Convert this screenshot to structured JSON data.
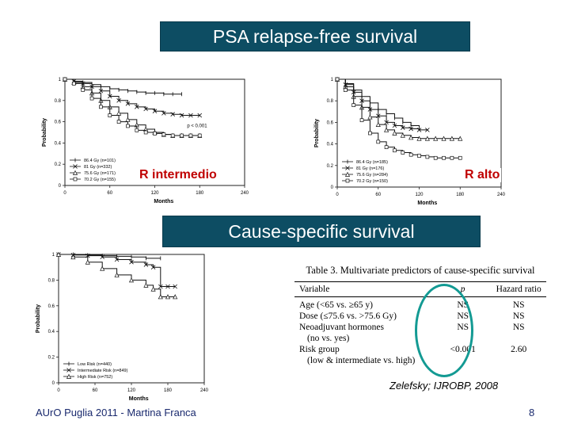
{
  "slide": {
    "title_top": "PSA relapse-free survival",
    "title_mid": "Cause-specific survival",
    "label_intermediate": "R  intermedio",
    "label_high": "R  alto",
    "citation": "Zelefsky; IJROBP, 2008",
    "footer": "AUrO Puglia 2011 - Martina Franca",
    "page_number": "8",
    "colors": {
      "banner": "#0d4d63",
      "label_red": "#c00000",
      "ellipse": "#139a93"
    }
  },
  "chart_data": [
    {
      "type": "line",
      "panel": "PSA relapse-free survival — intermediate risk",
      "xlabel": "Months",
      "ylabel": "Probability",
      "xticks": [
        "0",
        "60",
        "120",
        "180",
        "240"
      ],
      "yticks": [
        "0",
        "0.2",
        "0.4",
        "0.6",
        "0.8",
        "1"
      ],
      "xlim": [
        0,
        240
      ],
      "ylim": [
        0,
        1
      ],
      "annotation": "p < 0.001",
      "series": [
        {
          "name": "86.4 Gy (n=101)",
          "x": [
            0,
            12,
            24,
            36,
            48,
            60,
            72,
            84,
            96,
            108,
            120,
            132,
            144,
            156
          ],
          "y": [
            1,
            0.98,
            0.97,
            0.95,
            0.93,
            0.91,
            0.9,
            0.89,
            0.88,
            0.87,
            0.87,
            0.86,
            0.86,
            0.86
          ]
        },
        {
          "name": "81 Gy (n=332)",
          "x": [
            0,
            12,
            24,
            36,
            48,
            60,
            72,
            84,
            96,
            108,
            120,
            132,
            144,
            156,
            168,
            180
          ],
          "y": [
            1,
            0.98,
            0.96,
            0.93,
            0.89,
            0.84,
            0.8,
            0.77,
            0.74,
            0.72,
            0.7,
            0.68,
            0.67,
            0.66,
            0.66,
            0.66
          ]
        },
        {
          "name": "75.6 Gy (n=171)",
          "x": [
            0,
            12,
            24,
            36,
            48,
            60,
            72,
            84,
            96,
            108,
            120,
            132,
            144,
            156,
            168,
            180
          ],
          "y": [
            1,
            0.97,
            0.93,
            0.87,
            0.8,
            0.74,
            0.68,
            0.62,
            0.57,
            0.53,
            0.5,
            0.48,
            0.47,
            0.47,
            0.47,
            0.47
          ]
        },
        {
          "name": "70.2 Gy (n=155)",
          "x": [
            0,
            12,
            24,
            36,
            48,
            60,
            72,
            84,
            96,
            108,
            120,
            132,
            144,
            156,
            168,
            180
          ],
          "y": [
            1,
            0.96,
            0.9,
            0.82,
            0.74,
            0.66,
            0.6,
            0.56,
            0.52,
            0.5,
            0.49,
            0.48,
            0.47,
            0.47,
            0.47,
            0.47
          ]
        }
      ]
    },
    {
      "type": "line",
      "panel": "PSA relapse-free survival — high risk",
      "xlabel": "Months",
      "ylabel": "Probability",
      "xticks": [
        "0",
        "60",
        "120",
        "180",
        "240"
      ],
      "yticks": [
        "0",
        "0.2",
        "0.4",
        "0.6",
        "0.8",
        "1"
      ],
      "xlim": [
        0,
        240
      ],
      "ylim": [
        0,
        1
      ],
      "series": [
        {
          "name": "86.4 Gy (n=185)",
          "x": [
            0,
            12,
            24,
            36,
            48,
            60,
            72,
            84,
            96,
            108,
            120
          ],
          "y": [
            1,
            0.96,
            0.9,
            0.84,
            0.78,
            0.72,
            0.68,
            0.64,
            0.6,
            0.57,
            0.55
          ]
        },
        {
          "name": "81 Gy (n=176)",
          "x": [
            0,
            12,
            24,
            36,
            48,
            60,
            72,
            84,
            96,
            108,
            120,
            132
          ],
          "y": [
            1,
            0.95,
            0.88,
            0.8,
            0.72,
            0.66,
            0.6,
            0.57,
            0.55,
            0.54,
            0.53,
            0.53
          ]
        },
        {
          "name": "75.6 Gy (n=284)",
          "x": [
            0,
            12,
            24,
            36,
            48,
            60,
            72,
            84,
            96,
            108,
            120,
            132,
            144,
            156,
            168,
            180
          ],
          "y": [
            1,
            0.93,
            0.84,
            0.74,
            0.65,
            0.58,
            0.53,
            0.5,
            0.48,
            0.46,
            0.45,
            0.45,
            0.45,
            0.45,
            0.45,
            0.45
          ]
        },
        {
          "name": "70.2 Gy (n=150)",
          "x": [
            0,
            12,
            24,
            36,
            48,
            60,
            72,
            84,
            96,
            108,
            120,
            132,
            144,
            156,
            168,
            180
          ],
          "y": [
            1,
            0.9,
            0.76,
            0.62,
            0.5,
            0.42,
            0.37,
            0.34,
            0.32,
            0.3,
            0.29,
            0.28,
            0.27,
            0.27,
            0.27,
            0.27
          ]
        }
      ]
    },
    {
      "type": "line",
      "panel": "Cause-specific survival",
      "xlabel": "Months",
      "ylabel": "Probability",
      "xticks": [
        "0",
        "60",
        "120",
        "180",
        "240"
      ],
      "yticks": [
        "0",
        "0.2",
        "0.4",
        "0.6",
        "0.8",
        "1"
      ],
      "xlim": [
        0,
        240
      ],
      "ylim": [
        0,
        1
      ],
      "series": [
        {
          "name": "Low Risk (n=440)",
          "x": [
            0,
            24,
            48,
            72,
            96,
            120,
            144,
            168
          ],
          "y": [
            1,
            1,
            0.995,
            0.99,
            0.985,
            0.98,
            0.97,
            0.97
          ]
        },
        {
          "name": "Intermediate Risk (n=849)",
          "x": [
            0,
            24,
            48,
            72,
            96,
            120,
            144,
            156,
            168,
            180,
            192
          ],
          "y": [
            1,
            0.995,
            0.99,
            0.98,
            0.96,
            0.94,
            0.92,
            0.9,
            0.75,
            0.75,
            0.75
          ]
        },
        {
          "name": "High Risk (n=752)",
          "x": [
            0,
            24,
            48,
            72,
            96,
            120,
            144,
            156,
            168,
            180,
            192
          ],
          "y": [
            1,
            0.98,
            0.94,
            0.89,
            0.84,
            0.8,
            0.76,
            0.73,
            0.67,
            0.67,
            0.67
          ]
        }
      ]
    }
  ],
  "table": {
    "title": "Table 3.  Multivariate predictors of cause-specific survival",
    "columns": [
      "Variable",
      "p",
      "Hazard ratio"
    ],
    "rows": [
      {
        "variable": "Age (<65 vs. ≥65 y)",
        "p": "NS",
        "hr": "NS"
      },
      {
        "variable": "Dose (≤75.6 vs. >75.6 Gy)",
        "p": "NS",
        "hr": "NS"
      },
      {
        "variable": "Neoadjuvant hormones",
        "p": "NS",
        "hr": "NS"
      },
      {
        "variable": "(no vs. yes)",
        "p": "",
        "hr": ""
      },
      {
        "variable": "Risk group",
        "p": "<0.001",
        "hr": "2.60"
      },
      {
        "variable": "(low & intermediate vs. high)",
        "p": "",
        "hr": ""
      }
    ]
  }
}
